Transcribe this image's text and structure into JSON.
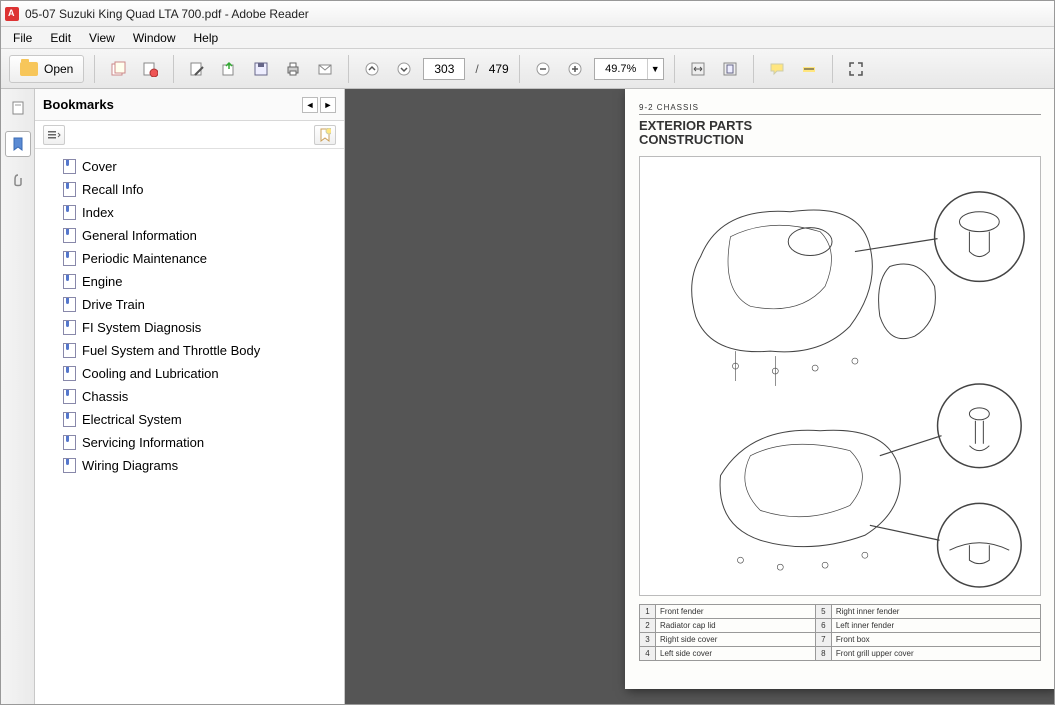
{
  "window": {
    "title": "05-07 Suzuki King Quad LTA 700.pdf - Adobe Reader"
  },
  "menu": {
    "items": [
      "File",
      "Edit",
      "View",
      "Window",
      "Help"
    ]
  },
  "toolbar": {
    "open_label": "Open",
    "current_page": "303",
    "total_pages": "479",
    "zoom": "49.7%"
  },
  "bookmarks": {
    "title": "Bookmarks",
    "items": [
      "Cover",
      "Recall Info",
      "Index",
      "General Information",
      "Periodic Maintenance",
      "Engine",
      "Drive Train",
      "FI System Diagnosis",
      "Fuel System and Throttle Body",
      "Cooling and Lubrication",
      "Chassis",
      "Electrical System",
      "Servicing Information",
      "Wiring Diagrams"
    ]
  },
  "document": {
    "section_ref": "9-2  CHASSIS",
    "heading1": "EXTERIOR PARTS",
    "heading2": "CONSTRUCTION",
    "legend": [
      {
        "n": "1",
        "a": "Front fender",
        "m": "5",
        "b": "Right inner fender"
      },
      {
        "n": "2",
        "a": "Radiator cap lid",
        "m": "6",
        "b": "Left inner fender"
      },
      {
        "n": "3",
        "a": "Right side cover",
        "m": "7",
        "b": "Front box"
      },
      {
        "n": "4",
        "a": "Left side cover",
        "m": "8",
        "b": "Front grill upper cover"
      }
    ]
  },
  "colors": {
    "doc_bg": "#555555",
    "page_bg": "#fdfdfb",
    "panel_border": "#c8c8c8"
  }
}
